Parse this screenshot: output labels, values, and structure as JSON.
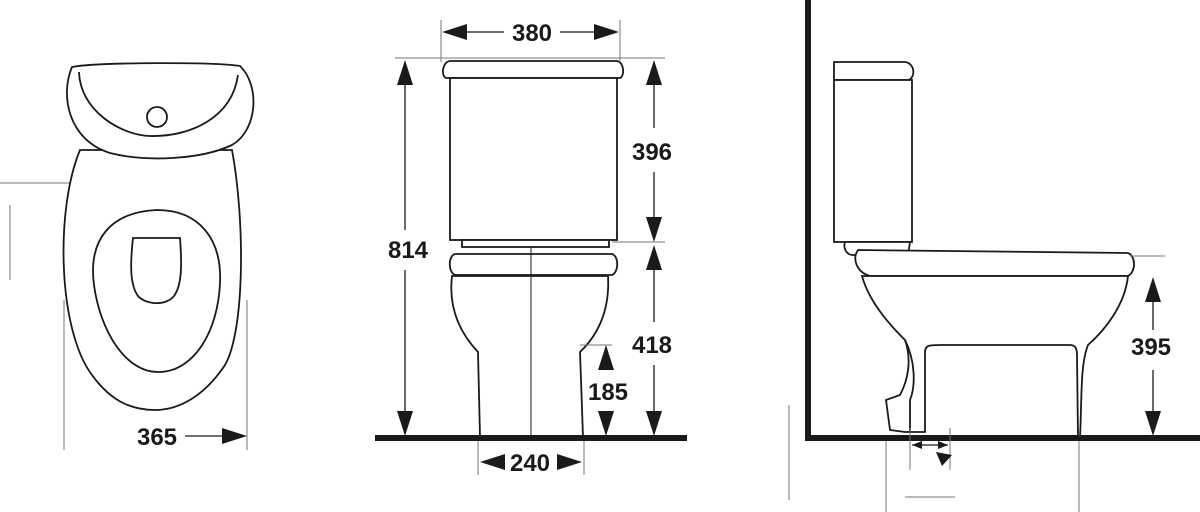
{
  "dimensions": {
    "front_width": "365",
    "tank_width": "380",
    "tank_height": "396",
    "total_height": "814",
    "bowl_height": "418",
    "outlet_height": "185",
    "base_width": "240",
    "seat_height": "395"
  },
  "colors": {
    "line": "#1a1a1a",
    "extension": "#777777",
    "background": "#ffffff"
  }
}
